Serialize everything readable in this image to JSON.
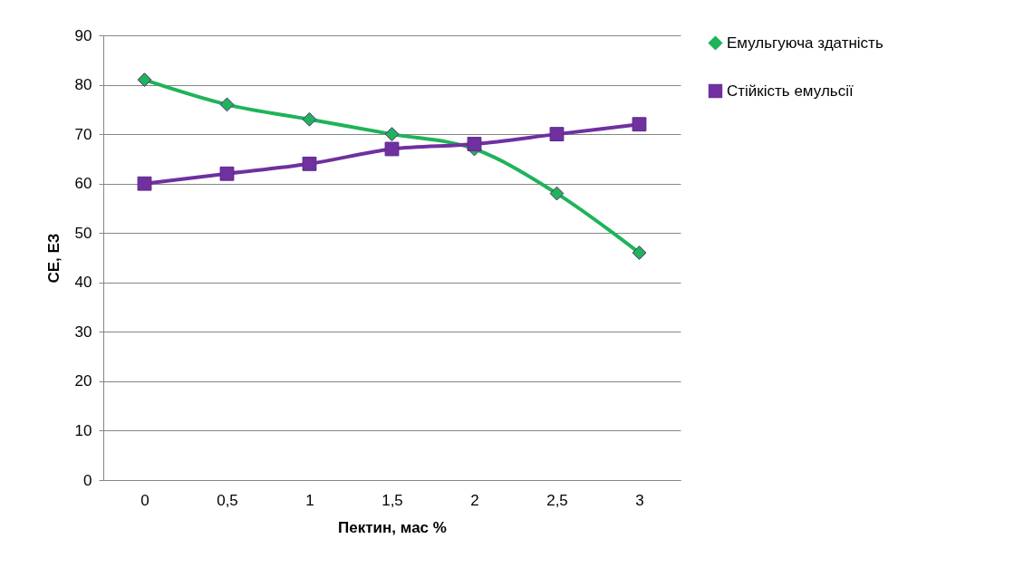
{
  "chart_data": {
    "type": "line",
    "xlabel": "Пектин, мас %",
    "ylabel": "СЕ, ЕЗ",
    "categories": [
      "0",
      "0,5",
      "1",
      "1,5",
      "2",
      "2,5",
      "3"
    ],
    "series": [
      {
        "name": "Емульгуюча здатність",
        "color": "#1fb35a",
        "marker": "diamond",
        "values": [
          81,
          76,
          73,
          70,
          67,
          58,
          46
        ]
      },
      {
        "name": "Стійкість емульсії",
        "color": "#7030a0",
        "marker": "square",
        "values": [
          60,
          62,
          64,
          67,
          68,
          70,
          72
        ]
      }
    ],
    "ylim": [
      0,
      90
    ],
    "yticks": [
      0,
      10,
      20,
      30,
      40,
      50,
      60,
      70,
      80,
      90
    ],
    "grid": "y",
    "legend": "right",
    "line_style": "solid"
  }
}
